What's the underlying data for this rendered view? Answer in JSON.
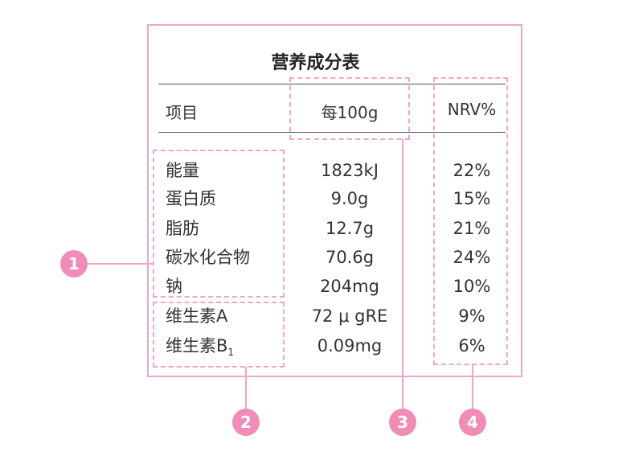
{
  "title": "营养成分表",
  "header": {
    "item": "项目",
    "per100": "每100g",
    "nrv": "NRV%"
  },
  "rows": [
    {
      "name": "能量",
      "value": "1823kJ",
      "nrv": "22%"
    },
    {
      "name": "蛋白质",
      "value": "9.0g",
      "nrv": "15%"
    },
    {
      "name": "脂肪",
      "value": "12.7g",
      "nrv": "21%"
    },
    {
      "name": "碳水化合物",
      "value": "70.6g",
      "nrv": "24%"
    },
    {
      "name": "钠",
      "value": "204mg",
      "nrv": "10%"
    },
    {
      "name": "维生素A",
      "value": "72 μ gRE",
      "nrv": "9%"
    },
    {
      "name": "维生素B",
      "name_sub": "1",
      "value": "0.09mg",
      "nrv": "6%"
    }
  ],
  "badges": [
    "1",
    "2",
    "3",
    "4"
  ],
  "colors": {
    "accent": "#f08cb6",
    "frame": "#f2a6c4"
  }
}
